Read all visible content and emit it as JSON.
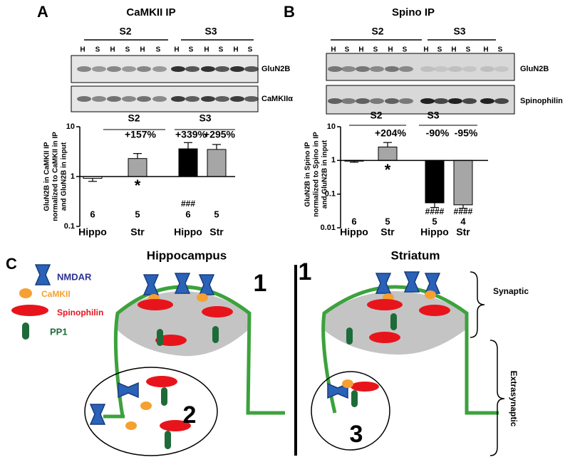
{
  "figure": {
    "panel_a": {
      "letter": "A",
      "title": "CaMKII IP",
      "groups": [
        "S2",
        "S3"
      ],
      "lanes": [
        "H",
        "S",
        "H",
        "S",
        "H",
        "S",
        "H",
        "S",
        "H",
        "S",
        "H",
        "S"
      ],
      "blot_labels": [
        "GluN2B",
        "CaMKIIα"
      ]
    },
    "panel_b": {
      "letter": "B",
      "title": "Spino IP",
      "groups": [
        "S2",
        "S3"
      ],
      "lanes": [
        "H",
        "S",
        "H",
        "S",
        "H",
        "S",
        "H",
        "S",
        "H",
        "S",
        "H",
        "S"
      ],
      "blot_labels": [
        "GluN2B",
        "Spinophilin"
      ]
    },
    "panel_c": {
      "letter": "C",
      "legend": [
        "NMDAR",
        "CaMKII",
        "Spinophilin",
        "PP1"
      ],
      "regions": [
        "Hippocampus",
        "Striatum"
      ],
      "pool_labels": [
        "1",
        "2",
        "1",
        "3"
      ],
      "brace_labels": [
        "Synaptic",
        "Extrasynaptic"
      ]
    }
  },
  "chart_data": [
    {
      "type": "bar",
      "yscale": "log",
      "ylabel": [
        "GluN2B in CaMKII IP",
        "normalized to  CaMKII in IP",
        "and GluN2B in input"
      ],
      "groups": [
        "S2",
        "S3"
      ],
      "categories": [
        "Hippo",
        "Str",
        "Hippo",
        "Str"
      ],
      "values": [
        0.92,
        2.3,
        3.6,
        3.5
      ],
      "errors": [
        0.12,
        0.6,
        1.2,
        0.9
      ],
      "colors": [
        "#ffffff",
        "#a6a6a6",
        "#000000",
        "#a6a6a6"
      ],
      "n": [
        6,
        5,
        6,
        5
      ],
      "annotations": [
        null,
        "+157%",
        "+339%",
        "+295%"
      ],
      "significance": [
        null,
        "*",
        "###",
        null
      ],
      "ylim": [
        0.1,
        10
      ],
      "yticks": [
        0.1,
        1,
        10
      ]
    },
    {
      "type": "bar",
      "yscale": "log",
      "ylabel": [
        "GluN2B in Spino IP",
        "normalized to  Spino in IP",
        "and GluN2B in input"
      ],
      "groups": [
        "S2",
        "S3"
      ],
      "categories": [
        "Hippo",
        "Str",
        "Hippo",
        "Str"
      ],
      "values": [
        0.95,
        2.5,
        0.055,
        0.048
      ],
      "errors": [
        0.07,
        0.9,
        0.015,
        0.01
      ],
      "colors": [
        "#ffffff",
        "#a6a6a6",
        "#000000",
        "#a6a6a6"
      ],
      "n": [
        6,
        5,
        5,
        4
      ],
      "annotations": [
        null,
        "+204%",
        "-90%",
        "-95%"
      ],
      "significance": [
        null,
        "*",
        "####",
        "####"
      ],
      "ylim": [
        0.01,
        10
      ],
      "yticks": [
        0.01,
        0.1,
        1,
        10
      ]
    }
  ]
}
